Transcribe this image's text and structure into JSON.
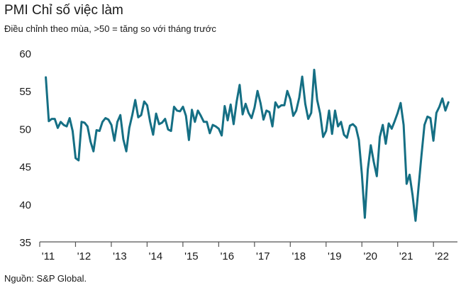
{
  "chart_data": {
    "type": "line",
    "title": "PMI Chỉ số việc làm",
    "subtitle": "Điều chỉnh theo mùa, >50 = tăng so với tháng trước",
    "source": "Nguồn: S&P Global.",
    "xlabel": "",
    "ylabel": "",
    "ylim": [
      35,
      60
    ],
    "yticks": [
      35,
      40,
      45,
      50,
      55,
      60
    ],
    "xlim": [
      2011,
      2022.67
    ],
    "xticks": [
      2011,
      2012,
      2013,
      2014,
      2015,
      2016,
      2017,
      2018,
      2019,
      2020,
      2021,
      2022
    ],
    "xtick_labels": [
      "'11",
      "'12",
      "'13",
      "'14",
      "'15",
      "'16",
      "'17",
      "'18",
      "'19",
      "'20",
      "'21",
      "'22"
    ],
    "grid": false,
    "colors": {
      "line": "#156f84",
      "axis": "#555555",
      "text": "#1a1a1a"
    },
    "series": [
      {
        "name": "PMI Chỉ số việc làm",
        "start": 2011.17,
        "step": 0.0833,
        "values": [
          56.8,
          51.0,
          51.3,
          51.3,
          50.1,
          50.9,
          50.5,
          50.3,
          51.4,
          49.7,
          46.1,
          45.8,
          50.9,
          50.8,
          50.3,
          48.3,
          47.0,
          49.8,
          49.7,
          50.9,
          51.4,
          51.2,
          50.5,
          48.4,
          50.9,
          51.8,
          48.6,
          47.0,
          50.1,
          51.8,
          53.8,
          51.5,
          51.8,
          53.6,
          53.1,
          50.9,
          49.2,
          52.0,
          50.6,
          50.8,
          51.3,
          49.9,
          49.7,
          52.9,
          52.4,
          52.3,
          52.9,
          51.7,
          48.5,
          52.5,
          50.9,
          52.4,
          51.7,
          50.9,
          50.9,
          49.4,
          50.5,
          50.3,
          50.0,
          49.1,
          53.0,
          51.1,
          53.2,
          50.6,
          53.6,
          55.8,
          51.9,
          53.3,
          52.1,
          51.4,
          52.8,
          55.0,
          53.4,
          51.2,
          52.4,
          52.2,
          50.3,
          53.5,
          52.8,
          53.1,
          53.1,
          55.0,
          53.9,
          51.7,
          52.4,
          54.1,
          56.9,
          53.3,
          51.3,
          52.1,
          57.8,
          53.8,
          52.0,
          48.9,
          49.7,
          52.4,
          49.3,
          52.4,
          50.3,
          50.9,
          49.2,
          48.8,
          50.4,
          50.6,
          50.2,
          48.5,
          44.0,
          38.2,
          44.6,
          47.8,
          45.6,
          43.7,
          48.9,
          50.5,
          48.0,
          50.7,
          50.0,
          51.0,
          52.1,
          53.4,
          50.5,
          42.7,
          43.9,
          41.2,
          37.8,
          42.2,
          46.5,
          50.5,
          51.6,
          51.4,
          48.4,
          52.1,
          52.9,
          54.0,
          52.4,
          53.5
        ]
      }
    ]
  }
}
